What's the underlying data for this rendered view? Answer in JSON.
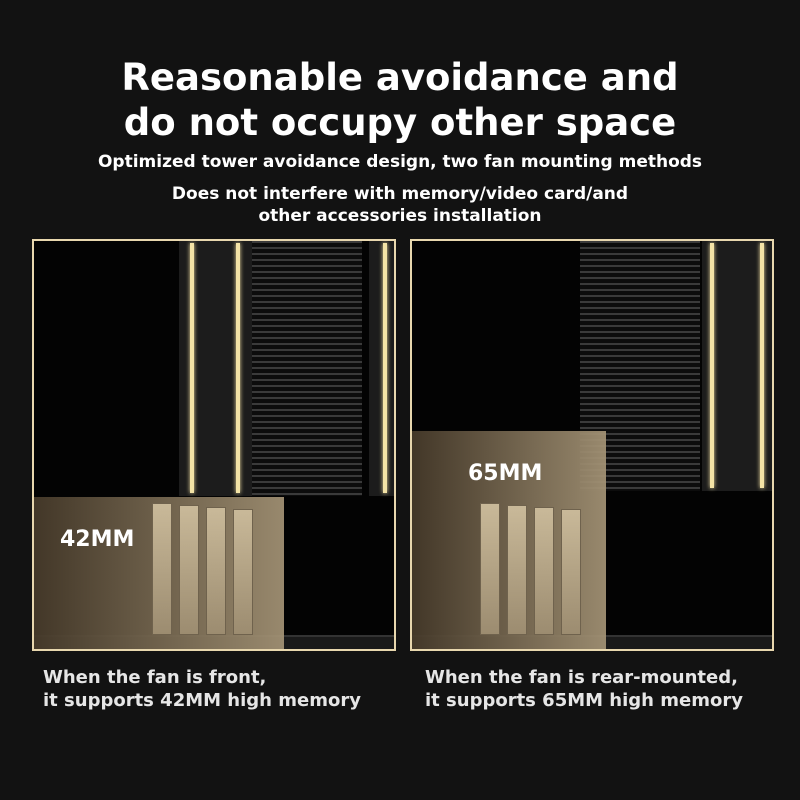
{
  "headline": {
    "line1": "Reasonable avoidance and",
    "line2": "do not occupy other space"
  },
  "subtitle": "Optimized tower avoidance design, two fan mounting methods",
  "description": {
    "line1": "Does not interfere with memory/video card/and",
    "line2": "other accessories installation"
  },
  "panels": [
    {
      "height_label": "42MM",
      "caption_line1": "When the fan is front,",
      "caption_line2": "it supports 42MM high memory"
    },
    {
      "height_label": "65MM",
      "caption_line1": "When the fan is rear-mounted,",
      "caption_line2": "it supports 65MM high memory"
    }
  ],
  "colors": {
    "background": "#121212",
    "frame": "#e8d7ae",
    "glow": "#f3e3a6"
  }
}
